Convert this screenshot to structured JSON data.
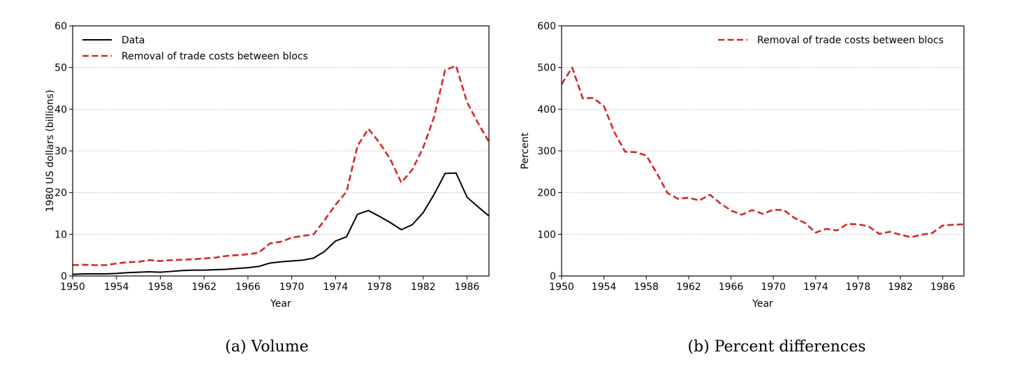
{
  "chart_data": [
    {
      "type": "line",
      "caption": "(a) Volume",
      "xlabel": "Year",
      "ylabel": "1980 US dollars (billions)",
      "xlim": [
        1950,
        1988
      ],
      "ylim": [
        0,
        60
      ],
      "xticks": [
        1950,
        1954,
        1958,
        1962,
        1966,
        1970,
        1974,
        1978,
        1982,
        1986
      ],
      "yticks": [
        0,
        10,
        20,
        30,
        40,
        50,
        60
      ],
      "grid": "horizontal dotted",
      "legend_position": "top-left",
      "x": [
        1950,
        1951,
        1952,
        1953,
        1954,
        1955,
        1956,
        1957,
        1958,
        1959,
        1960,
        1961,
        1962,
        1963,
        1964,
        1965,
        1966,
        1967,
        1968,
        1969,
        1970,
        1971,
        1972,
        1973,
        1974,
        1975,
        1976,
        1977,
        1978,
        1979,
        1980,
        1981,
        1982,
        1983,
        1984,
        1985,
        1986,
        1987,
        1988
      ],
      "series": [
        {
          "name": "Data",
          "color": "#000000",
          "style": "solid",
          "values": [
            0.4,
            0.5,
            0.5,
            0.5,
            0.6,
            0.8,
            0.9,
            1.0,
            0.9,
            1.1,
            1.3,
            1.4,
            1.4,
            1.5,
            1.6,
            1.8,
            2.0,
            2.3,
            3.1,
            3.4,
            3.6,
            3.8,
            4.3,
            5.9,
            8.4,
            9.4,
            14.8,
            15.7,
            14.3,
            12.8,
            11.1,
            12.3,
            15.2,
            19.6,
            24.6,
            24.7,
            18.9,
            16.6,
            14.4
          ]
        },
        {
          "name": "Removal of trade costs between blocs",
          "color": "#d62728",
          "style": "dashed",
          "values": [
            2.6,
            2.7,
            2.6,
            2.6,
            3.0,
            3.3,
            3.4,
            3.8,
            3.6,
            3.8,
            3.9,
            4.0,
            4.2,
            4.4,
            4.8,
            5.0,
            5.2,
            5.6,
            7.8,
            8.2,
            9.2,
            9.6,
            10.0,
            13.4,
            17.1,
            20.2,
            31.2,
            35.3,
            32.0,
            28.0,
            22.4,
            25.5,
            30.8,
            38.2,
            49.4,
            50.4,
            41.7,
            36.7,
            32.2
          ]
        }
      ]
    },
    {
      "type": "line",
      "caption": "(b) Percent differences",
      "xlabel": "Year",
      "ylabel": "Percent",
      "xlim": [
        1950,
        1988
      ],
      "ylim": [
        0,
        600
      ],
      "xticks": [
        1950,
        1954,
        1958,
        1962,
        1966,
        1970,
        1974,
        1978,
        1982,
        1986
      ],
      "yticks": [
        0,
        100,
        200,
        300,
        400,
        500,
        600
      ],
      "grid": "horizontal dotted",
      "legend_position": "top-right",
      "x": [
        1950,
        1951,
        1952,
        1953,
        1954,
        1955,
        1956,
        1957,
        1958,
        1959,
        1960,
        1961,
        1962,
        1963,
        1964,
        1965,
        1966,
        1967,
        1968,
        1969,
        1970,
        1971,
        1972,
        1973,
        1974,
        1975,
        1976,
        1977,
        1978,
        1979,
        1980,
        1981,
        1982,
        1983,
        1984,
        1985,
        1986,
        1987,
        1988
      ],
      "series": [
        {
          "name": "Removal of trade costs between blocs",
          "color": "#d62728",
          "style": "dashed",
          "values": [
            460,
            500,
            426,
            427,
            407,
            344,
            298,
            297,
            289,
            246,
            199,
            185,
            188,
            181,
            195,
            174,
            157,
            147,
            158,
            149,
            159,
            158,
            139,
            127,
            104,
            113,
            109,
            125,
            124,
            119,
            101,
            106,
            99,
            93,
            99,
            103,
            121,
            123,
            124
          ]
        }
      ]
    }
  ]
}
